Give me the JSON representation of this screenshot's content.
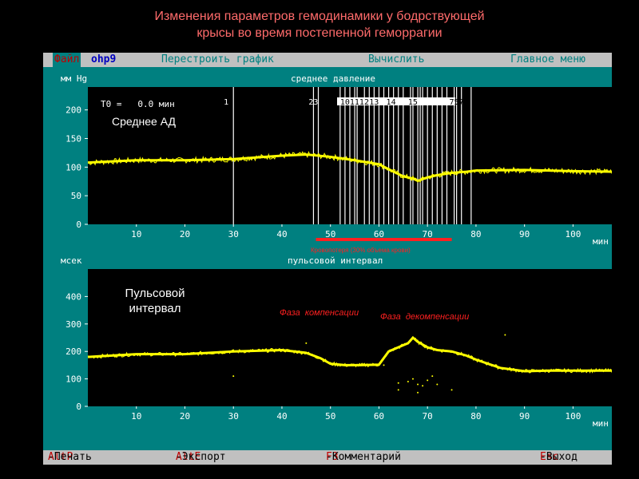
{
  "title": {
    "line1": "Изменения параметров гемодинамики  у бодрствующей",
    "line2": "крысы во время постепенной геморрагии"
  },
  "menu": {
    "file": "Файл",
    "filename": "ohp9",
    "rebuild": "Перестроить график",
    "calculate": "Вычислить",
    "main_menu": "Главное меню"
  },
  "footer": {
    "print_key": "AltP",
    "print_label": "-Печать",
    "export_key": "AltE",
    "export_label": "-Экспорт",
    "comment_key": "F3",
    "comment_label": "-Комментарий",
    "exit_key": "Esc",
    "exit_label": "-Выход"
  },
  "colors": {
    "signal": "#ffff00",
    "markers": "#ffffff",
    "annotation": "#ff2020",
    "title": "#ff6b6b"
  },
  "chart_data": [
    {
      "type": "line",
      "title": "среднее давление",
      "ylabel": "мм Hg",
      "xlabel": "мин",
      "ylim": [
        0,
        240
      ],
      "xlim": [
        0,
        108
      ],
      "yticks": [
        "0",
        "50",
        "100",
        "150",
        "200"
      ],
      "xticks": [
        "10",
        "20",
        "30",
        "40",
        "50",
        "60",
        "70",
        "80",
        "90",
        "100"
      ],
      "readout": "T0 =   0.0 мин",
      "overlay_label": "Среднее АД",
      "marker_labels": [
        "1",
        "23",
        "101112",
        "13",
        "14",
        "15",
        "7576"
      ],
      "markers_x": [
        30,
        46.5,
        47.5,
        52,
        53,
        54,
        55,
        55.5,
        57,
        58,
        59,
        60,
        61,
        62,
        63,
        64,
        65,
        66.5,
        67,
        68,
        68.5,
        69,
        70,
        71,
        72,
        73,
        74,
        75.5,
        76,
        77,
        79
      ],
      "annotation_bar": {
        "x_start": 47,
        "x_end": 75,
        "label": "Кровопотеря (30% объема крови)"
      },
      "series": [
        {
          "x": [
            0,
            10,
            20,
            30,
            40,
            45,
            50,
            55,
            60,
            63,
            65,
            67,
            68,
            70,
            72,
            75,
            78,
            80,
            90,
            100,
            108
          ],
          "values": [
            108,
            112,
            112,
            114,
            120,
            122,
            118,
            112,
            105,
            92,
            84,
            80,
            76,
            82,
            86,
            90,
            92,
            94,
            95,
            93,
            92
          ]
        }
      ]
    },
    {
      "type": "line",
      "title": "пульсовой интервал",
      "ylabel": "мсек",
      "xlabel": "мин",
      "ylim": [
        0,
        500
      ],
      "xlim": [
        0,
        108
      ],
      "yticks": [
        "0",
        "100",
        "200",
        "300",
        "400"
      ],
      "xticks": [
        "10",
        "20",
        "30",
        "40",
        "50",
        "60",
        "70",
        "80",
        "90",
        "100"
      ],
      "overlay_label_line1": "Пульсовой",
      "overlay_label_line2": "интервал",
      "annotations": [
        "Фаза  компенсации",
        "Фаза  декомпенсации"
      ],
      "series": [
        {
          "x": [
            0,
            5,
            10,
            20,
            30,
            40,
            45,
            48,
            50,
            53,
            56,
            60,
            62,
            64,
            66,
            67,
            68,
            70,
            72,
            75,
            78,
            80,
            85,
            90,
            95,
            100,
            108
          ],
          "values": [
            180,
            185,
            190,
            190,
            200,
            205,
            195,
            175,
            155,
            150,
            150,
            152,
            200,
            215,
            230,
            250,
            235,
            215,
            205,
            200,
            185,
            170,
            140,
            128,
            130,
            130,
            130
          ]
        }
      ]
    }
  ]
}
